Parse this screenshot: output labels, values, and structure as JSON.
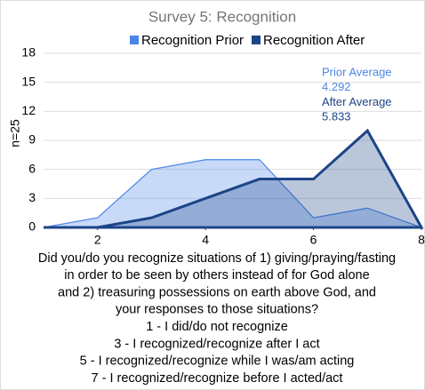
{
  "chart_data": {
    "type": "area",
    "title": "Survey 5: Recognition",
    "ylabel": "n=25",
    "xlabel": [
      "Did you/do you recognize situations of 1) giving/praying/fasting",
      "in order to be seen by others instead of for God alone",
      "and 2) treasuring possessions on earth above God, and",
      "your responses to those situations?",
      "1 - I did/do not recognize",
      "3 - I recognized/recognize after I act",
      "5 - I recognized/recognize while I was/am acting",
      "7 - I recognized/recognize before I acted/act"
    ],
    "x": [
      1,
      2,
      3,
      4,
      5,
      6,
      7,
      8
    ],
    "series": [
      {
        "name": "Recognition Prior",
        "color": "#4a86e8",
        "values": [
          0,
          1,
          6,
          7,
          7,
          1,
          2,
          0
        ]
      },
      {
        "name": "Recognition After",
        "color": "#1c4587",
        "values": [
          0,
          0,
          1,
          3,
          5,
          5,
          10,
          0
        ]
      }
    ],
    "annotations": [
      {
        "text": "Prior Average",
        "color": "#4a86e8"
      },
      {
        "text": "4.292",
        "color": "#4a86e8"
      },
      {
        "text": "After Average",
        "color": "#1c4587"
      },
      {
        "text": "5.833",
        "color": "#1c4587"
      }
    ],
    "xlim": [
      1,
      8
    ],
    "xticks": [
      2,
      4,
      6,
      8
    ],
    "ylim": [
      0,
      18
    ],
    "yticks": [
      0,
      3,
      6,
      9,
      12,
      15,
      18
    ],
    "grid": true,
    "legend": "top"
  }
}
